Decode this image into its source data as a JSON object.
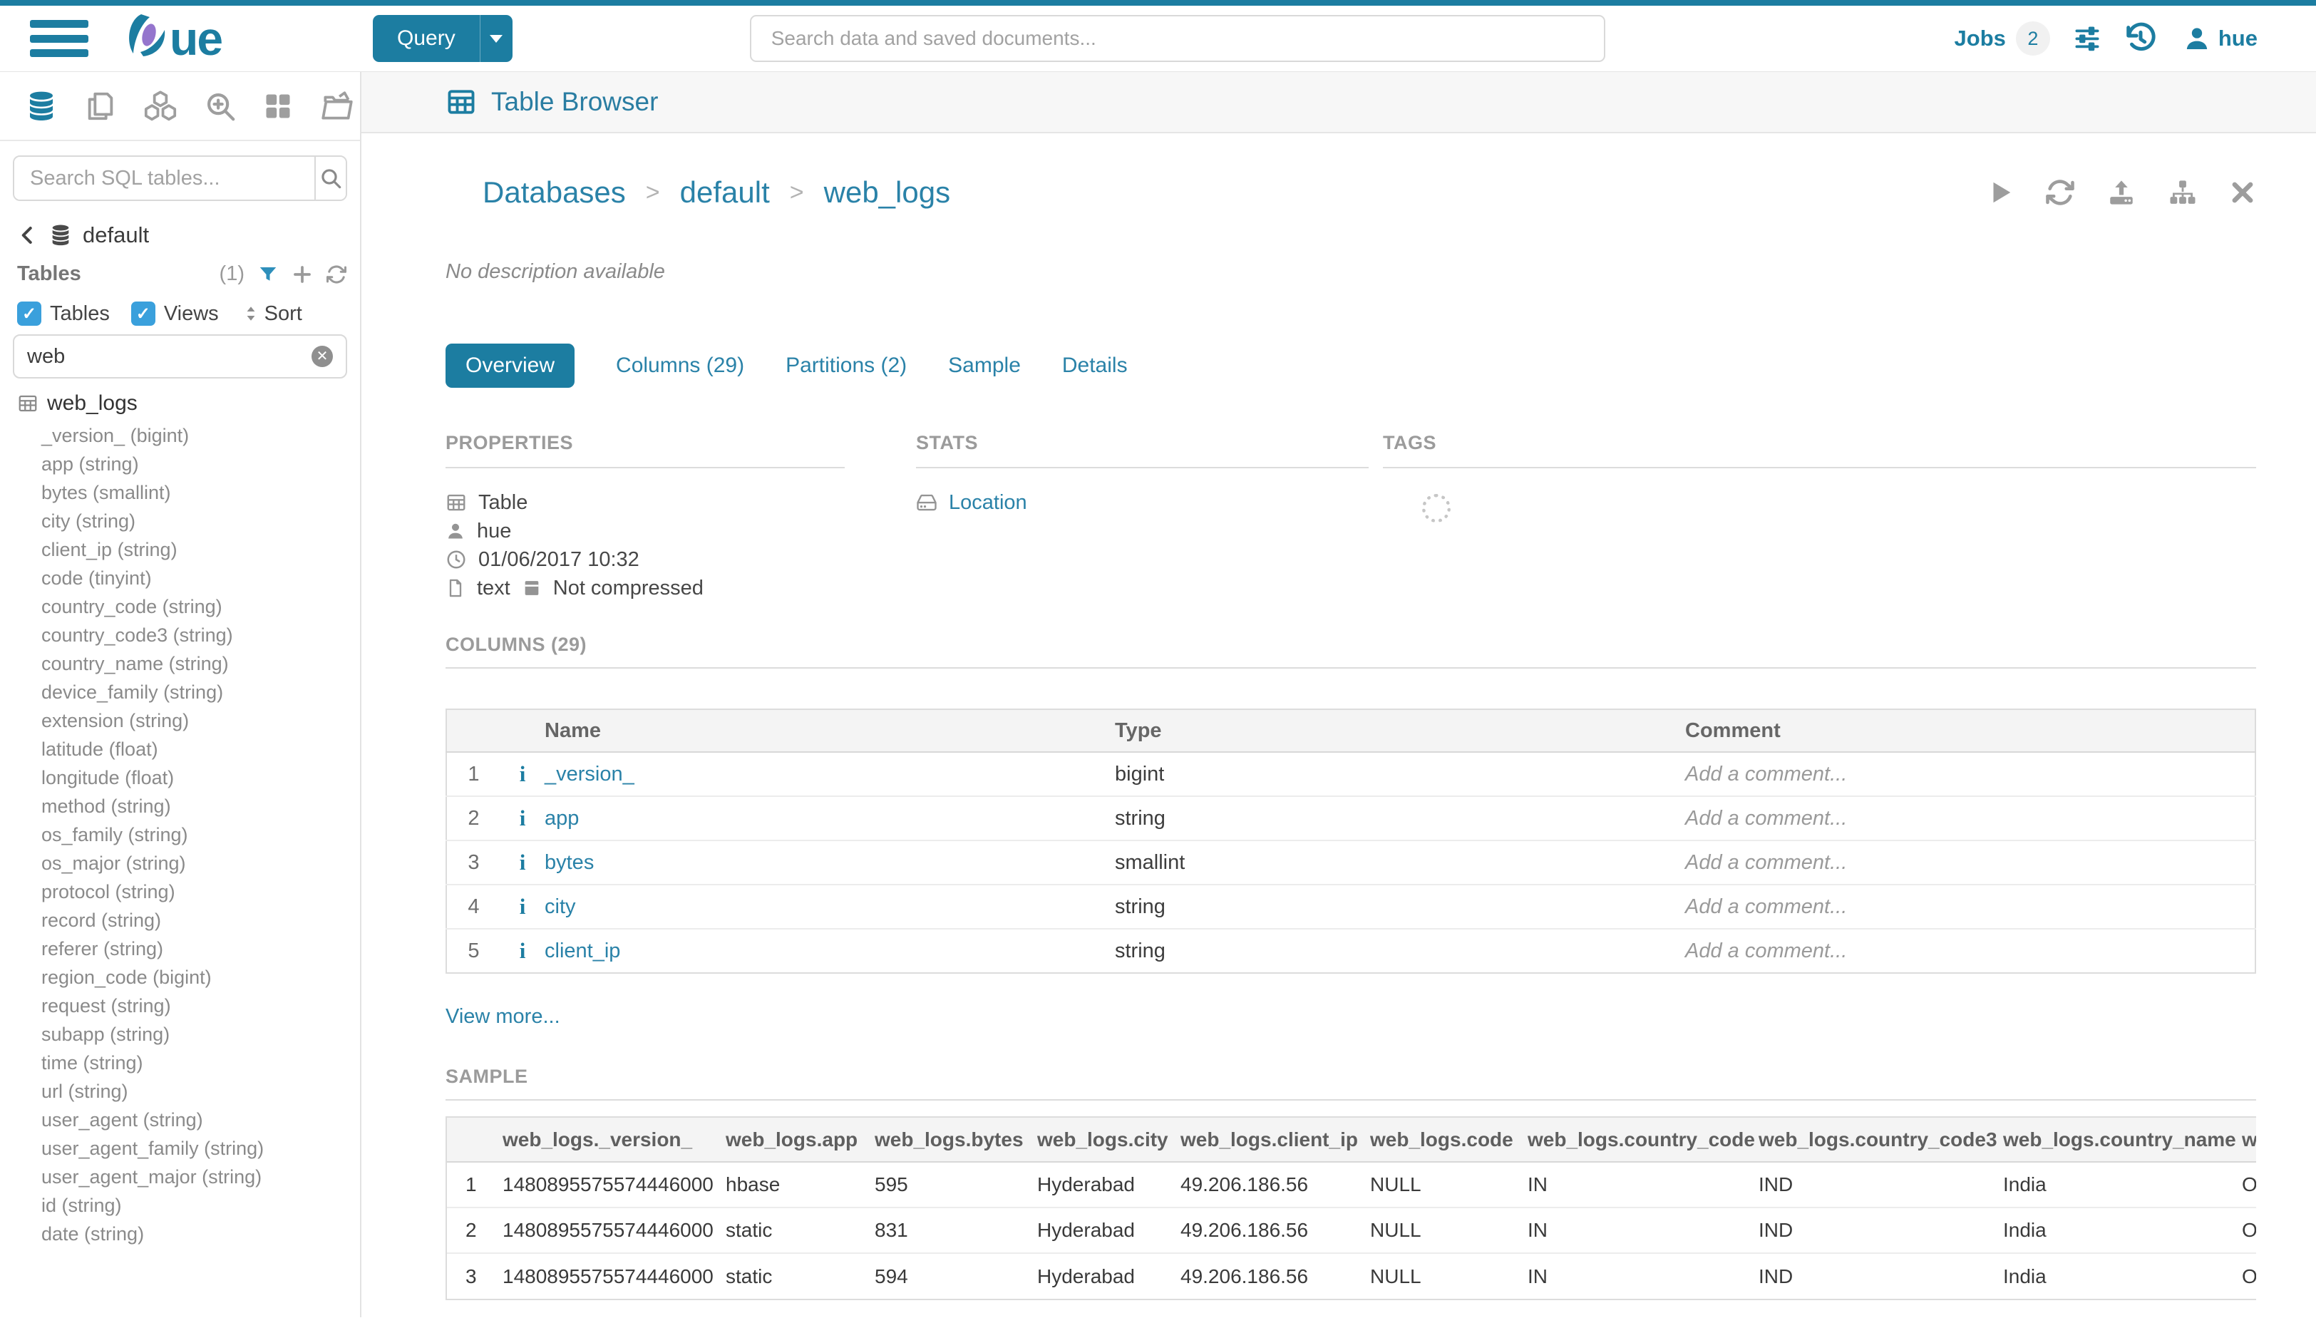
{
  "colors": {
    "primary": "#1c7da1",
    "link": "#2a82a8",
    "checkbox_blue": "#3aa0dc",
    "funnel_blue": "#2e8fbb",
    "logo_purple": "#9575cd"
  },
  "topbar": {
    "logo_suffix": "ue",
    "query_label": "Query",
    "search_placeholder": "Search data and saved documents...",
    "jobs_label": "Jobs",
    "jobs_count": "2",
    "user_name": "hue"
  },
  "sidebar": {
    "search_placeholder": "Search SQL tables...",
    "database": "default",
    "tables_label": "Tables",
    "tables_count": "(1)",
    "tables_checkbox_label": "Tables",
    "tables_checked": true,
    "views_checkbox_label": "Views",
    "views_checked": true,
    "sort_label": "Sort",
    "filter_value": "web",
    "table_name": "web_logs",
    "columns": [
      "_version_ (bigint)",
      "app (string)",
      "bytes (smallint)",
      "city (string)",
      "client_ip (string)",
      "code (tinyint)",
      "country_code (string)",
      "country_code3 (string)",
      "country_name (string)",
      "device_family (string)",
      "extension (string)",
      "latitude (float)",
      "longitude (float)",
      "method (string)",
      "os_family (string)",
      "os_major (string)",
      "protocol (string)",
      "record (string)",
      "referer (string)",
      "region_code (bigint)",
      "request (string)",
      "subapp (string)",
      "time (string)",
      "url (string)",
      "user_agent (string)",
      "user_agent_family (string)",
      "user_agent_major (string)",
      "id (string)",
      "date (string)"
    ]
  },
  "header": {
    "app_title": "Table Browser",
    "breadcrumb": [
      "Databases",
      "default",
      "web_logs"
    ],
    "breadcrumb_separator": ">",
    "description": "No description available"
  },
  "tabs": [
    {
      "label": "Overview",
      "active": true
    },
    {
      "label": "Columns (29)",
      "active": false
    },
    {
      "label": "Partitions (2)",
      "active": false
    },
    {
      "label": "Sample",
      "active": false
    },
    {
      "label": "Details",
      "active": false
    }
  ],
  "overview": {
    "properties": {
      "title": "PROPERTIES",
      "type": "Table",
      "owner": "hue",
      "created": "01/06/2017 10:32",
      "format": "text",
      "compression": "Not compressed"
    },
    "stats": {
      "title": "STATS",
      "location_label": "Location"
    },
    "tags": {
      "title": "TAGS"
    },
    "columns_section": {
      "title": "COLUMNS (29)",
      "headers": [
        "Name",
        "Type",
        "Comment"
      ],
      "rows": [
        {
          "n": "1",
          "name": "_version_",
          "type": "bigint",
          "comment": "Add a comment..."
        },
        {
          "n": "2",
          "name": "app",
          "type": "string",
          "comment": "Add a comment..."
        },
        {
          "n": "3",
          "name": "bytes",
          "type": "smallint",
          "comment": "Add a comment..."
        },
        {
          "n": "4",
          "name": "city",
          "type": "string",
          "comment": "Add a comment..."
        },
        {
          "n": "5",
          "name": "client_ip",
          "type": "string",
          "comment": "Add a comment..."
        }
      ],
      "view_more": "View more..."
    },
    "sample_section": {
      "title": "SAMPLE",
      "headers": [
        "web_logs._version_",
        "web_logs.app",
        "web_logs.bytes",
        "web_logs.city",
        "web_logs.client_ip",
        "web_logs.code",
        "web_logs.country_code",
        "web_logs.country_code3",
        "web_logs.country_name",
        "w"
      ],
      "rows": [
        {
          "n": "1",
          "cells": [
            "1480895575574446000",
            "hbase",
            "595",
            "Hyderabad",
            "49.206.186.56",
            "NULL",
            "IN",
            "IND",
            "India",
            "O"
          ]
        },
        {
          "n": "2",
          "cells": [
            "1480895575574446000",
            "static",
            "831",
            "Hyderabad",
            "49.206.186.56",
            "NULL",
            "IN",
            "IND",
            "India",
            "O"
          ]
        },
        {
          "n": "3",
          "cells": [
            "1480895575574446000",
            "static",
            "594",
            "Hyderabad",
            "49.206.186.56",
            "NULL",
            "IN",
            "IND",
            "India",
            "O"
          ]
        }
      ]
    }
  }
}
